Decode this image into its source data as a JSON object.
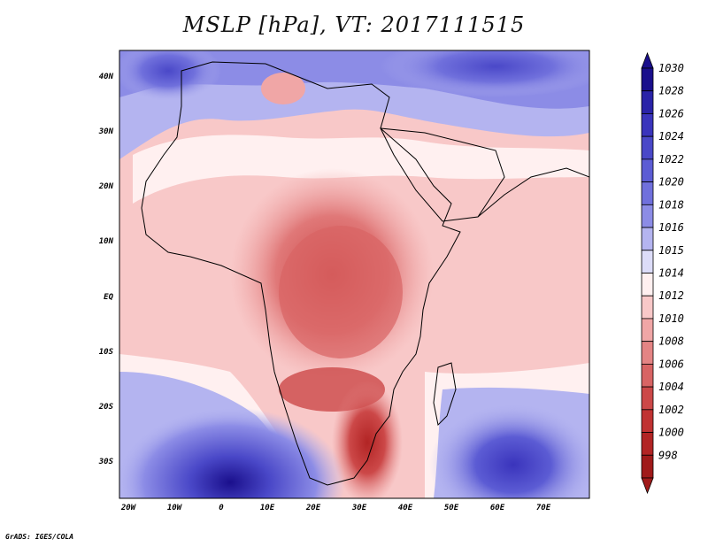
{
  "title": "MSLP [hPa], VT: 2017111515",
  "footer": "GrADS: IGES/COLA",
  "map": {
    "lon_ticks": [
      "20W",
      "10W",
      "0",
      "10E",
      "20E",
      "30E",
      "40E",
      "50E",
      "60E",
      "70E"
    ],
    "lat_ticks": [
      "40N",
      "30N",
      "20N",
      "10N",
      "EQ",
      "10S",
      "20S",
      "30S"
    ]
  },
  "colorbar": {
    "levels": [
      "1030",
      "1028",
      "1026",
      "1024",
      "1022",
      "1020",
      "1018",
      "1016",
      "1015",
      "1014",
      "1012",
      "1010",
      "1008",
      "1006",
      "1004",
      "1002",
      "1000",
      "998"
    ],
    "colors": [
      "#1a0f8c",
      "#2a23a8",
      "#3a34bc",
      "#4a48c8",
      "#5c5cd4",
      "#7070dc",
      "#8c8ce6",
      "#b4b4f0",
      "#dcdcf8",
      "#fff0f0",
      "#f8c8c8",
      "#f0a6a6",
      "#e48484",
      "#d86464",
      "#cc4848",
      "#c03232",
      "#b22424",
      "#a01a1a"
    ]
  }
}
